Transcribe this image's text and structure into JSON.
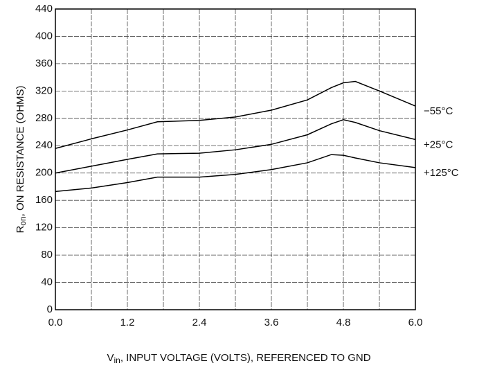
{
  "chart_data": {
    "type": "line",
    "x_label": {
      "symbol": "V",
      "subscript": "in",
      "text": ", INPUT VOLTAGE (VOLTS), REFERENCED TO GND"
    },
    "y_label": {
      "symbol": "R",
      "subscript": "on",
      "text": ", ON RESISTANCE (OHMS)"
    },
    "x": [
      0,
      0.6,
      1.2,
      1.7,
      2.4,
      3.0,
      3.6,
      4.2,
      4.6,
      4.8,
      5.0,
      5.4,
      6.0
    ],
    "series": [
      {
        "name": "−55°C",
        "color": "#000000",
        "values": [
          236,
          250,
          263,
          275,
          277,
          282,
          292,
          307,
          325,
          332,
          334,
          320,
          298
        ]
      },
      {
        "name": "+25°C",
        "color": "#000000",
        "values": [
          200,
          210,
          220,
          228,
          229,
          234,
          242,
          256,
          272,
          278,
          274,
          262,
          249
        ]
      },
      {
        "name": "+125°C",
        "color": "#000000",
        "values": [
          173,
          178,
          186,
          194,
          194,
          198,
          205,
          215,
          227,
          226,
          222,
          215,
          208
        ]
      }
    ],
    "xlim": [
      0,
      6
    ],
    "xticks": [
      {
        "value": 0,
        "label": "0.0"
      },
      1.2,
      2.4,
      3.6,
      4.8,
      {
        "value": 6,
        "label": "6.0"
      }
    ],
    "x_minor_grid": [
      0.6,
      1.8,
      3.0,
      4.2,
      5.4
    ],
    "ylim": [
      0,
      440
    ],
    "yticks": [
      0,
      40,
      80,
      120,
      160,
      200,
      240,
      280,
      320,
      360,
      400,
      440
    ],
    "grid": true
  }
}
